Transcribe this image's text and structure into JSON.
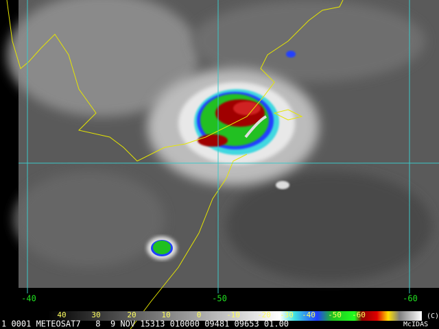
{
  "grid_labels": [
    "-40",
    "-50",
    "-60"
  ],
  "colorbar": {
    "labels": [
      "40",
      "30",
      "20",
      "10",
      "0",
      "-10",
      "-20",
      "-30",
      "-40",
      "-50",
      "-60"
    ],
    "unit": "(C)"
  },
  "footer": {
    "info": "1 0001 METEOSAT7   8  9 NOV 15313 010000 09481 09653 01.00",
    "source": "McIDAS"
  }
}
